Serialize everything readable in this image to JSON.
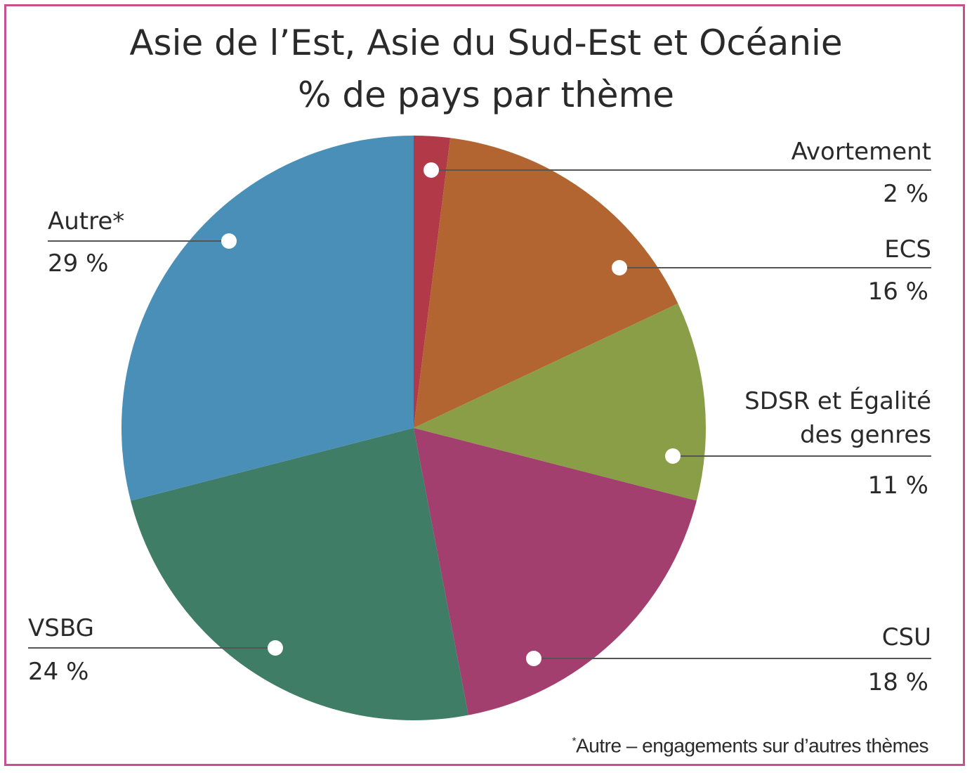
{
  "frame_color": "#c9508f",
  "title_line1": "Asie de l’Est, Asie du Sud-Est et Océanie",
  "title_line2": "% de pays par thème",
  "chart_data": {
    "type": "pie",
    "slices": [
      {
        "label": "Avortement",
        "value_text": "2 %",
        "value": 2,
        "color": "#b23a48"
      },
      {
        "label": "ECS",
        "value_text": "16 %",
        "value": 16,
        "color": "#b26530"
      },
      {
        "label_line1": "SDSR et Égalité",
        "label_line2": "des genres",
        "value_text": "11 %",
        "value": 11,
        "color": "#8a9e47"
      },
      {
        "label": "CSU",
        "value_text": "18 %",
        "value": 18,
        "color": "#a33f6f"
      },
      {
        "label": "VSBG",
        "value_text": "24 %",
        "value": 24,
        "color": "#3f7d66"
      },
      {
        "label": "Autre*",
        "value_text": "29 %",
        "value": 29,
        "color": "#4a8fb8"
      }
    ]
  },
  "footnote_mark": "*",
  "footnote_text": "Autre – engagements sur d’autres thèmes"
}
